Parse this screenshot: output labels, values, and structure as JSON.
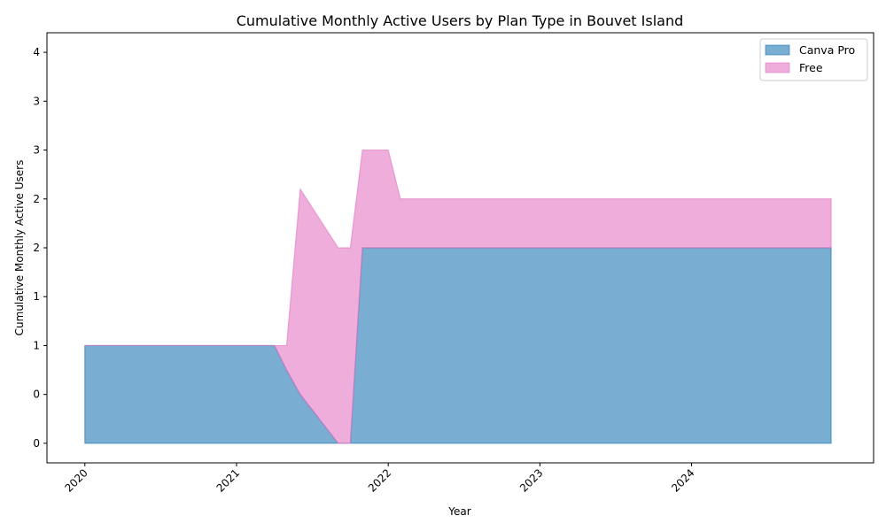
{
  "chart_data": {
    "type": "area",
    "stacked": true,
    "title": "Cumulative Monthly Active Users by Plan Type in Bouvet Island",
    "xlabel": "Year",
    "ylabel": "Cumulative Monthly Active Users",
    "x_tick_labels": [
      "2020",
      "2021",
      "2022",
      "2023",
      "2024"
    ],
    "y_tick_labels": [
      "0",
      "0",
      "1",
      "1",
      "2",
      "2",
      "3",
      "3",
      "4"
    ],
    "x_range": [
      2019.75,
      2025.2
    ],
    "y_range": [
      -0.2,
      4.2
    ],
    "grid": false,
    "legend_position": "top-right",
    "x": [
      2020.0,
      2021.25,
      2021.33,
      2021.42,
      2021.67,
      2021.75,
      2021.83,
      2022.0,
      2022.08,
      2024.92
    ],
    "series": [
      {
        "name": "Canva Pro",
        "color": "#1f77b4",
        "values": [
          1,
          1,
          0.75,
          0.5,
          0,
          0,
          2,
          2,
          2,
          2
        ]
      },
      {
        "name": "Free",
        "color": "#e377c2",
        "values": [
          0,
          0,
          0.25,
          2.1,
          2,
          2,
          1,
          1,
          0.5,
          0.5
        ]
      }
    ]
  }
}
